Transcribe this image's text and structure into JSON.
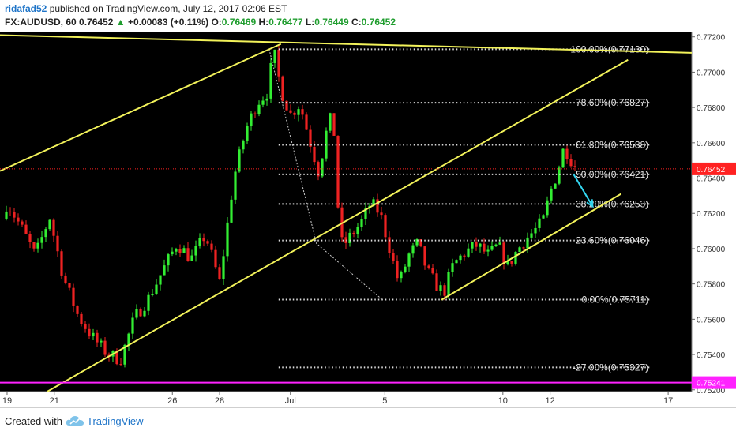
{
  "header": {
    "author": "ridafad52",
    "published_text": "published on TradingView.com, July 12, 2017 02:06 EST",
    "symbol": "FX:AUDUSD, 60",
    "last": "0.76452",
    "change_arrow": "▲",
    "change": "+0.00083 (+0.11%)",
    "o_label": "O:",
    "o_value": "0.76469",
    "h_label": "H:",
    "h_value": "0.76477",
    "l_label": "L:",
    "l_value": "0.76449",
    "c_label": "C:",
    "c_value": "0.76452"
  },
  "footer": {
    "created_with": "Created with",
    "brand": "TradingView",
    "logo_icon": "tradingview-cloud-icon"
  },
  "colors": {
    "background": "#000000",
    "bull": "#33ee33",
    "bear": "#ee2222",
    "trendline": "#f2f25a",
    "fib": "#dddddd",
    "current_price": "#ff2222",
    "support": "#ff22ff",
    "arrow": "#33d6f0"
  },
  "chart_data": {
    "type": "candlestick",
    "symbol": "FX:AUDUSD",
    "interval": "60",
    "ylim": [
      0.7519,
      0.7723
    ],
    "y_ticks": [
      "0.77200",
      "0.77000",
      "0.76800",
      "0.76600",
      "0.76400",
      "0.76200",
      "0.76000",
      "0.75800",
      "0.75600",
      "0.75400",
      "0.75200"
    ],
    "x_ticks": [
      {
        "label": "19",
        "day": 19
      },
      {
        "label": "21",
        "day": 21
      },
      {
        "label": "26",
        "day": 26
      },
      {
        "label": "28",
        "day": 28
      },
      {
        "label": "Jul",
        "day": 31
      },
      {
        "label": "5",
        "day": 35
      },
      {
        "label": "10",
        "day": 40
      },
      {
        "label": "12",
        "day": 42
      },
      {
        "label": "17",
        "day": 47
      }
    ],
    "x_range_days": [
      18.7,
      48.0
    ],
    "current_price": {
      "label": "0.76452",
      "value": 0.76452
    },
    "support_level": {
      "label": "0.75241",
      "value": 0.75241
    },
    "fib_levels": [
      {
        "label": "100.00%(0.77130)",
        "value": 0.7713
      },
      {
        "label": "78.60%(0.76827)",
        "value": 0.76827
      },
      {
        "label": "61.80%(0.76588)",
        "value": 0.76588
      },
      {
        "label": "50.00%(0.76421)",
        "value": 0.76421
      },
      {
        "label": "38.20%(0.76253)",
        "value": 0.76253
      },
      {
        "label": "23.60%(0.76046)",
        "value": 0.76046
      },
      {
        "label": "0.00%(0.75711)",
        "value": 0.75711
      },
      {
        "label": "-27.00%(0.75327)",
        "value": 0.75327
      }
    ],
    "fib_start_day": 30.5,
    "fib_end_day": 46.3,
    "trendlines": [
      {
        "from": {
          "day": 18.7,
          "price": 0.7721
        },
        "to": {
          "day": 48.0,
          "price": 0.7711
        }
      },
      {
        "from": {
          "day": 18.7,
          "price": 0.7644
        },
        "to": {
          "day": 30.6,
          "price": 0.7716
        }
      },
      {
        "from": {
          "day": 20.7,
          "price": 0.7519
        },
        "to": {
          "day": 45.3,
          "price": 0.7707
        }
      },
      {
        "from": {
          "day": 37.4,
          "price": 0.7571
        },
        "to": {
          "day": 45.0,
          "price": 0.7631
        }
      }
    ],
    "zigzag": [
      {
        "day": 30.1,
        "price": 0.7713
      },
      {
        "day": 32.1,
        "price": 0.7603
      },
      {
        "day": 34.9,
        "price": 0.7571
      }
    ],
    "arrow": {
      "from": {
        "day": 43.0,
        "price": 0.7642
      },
      "to": {
        "day": 43.8,
        "price": 0.7624
      }
    },
    "price_path": [
      {
        "day": 18.7,
        "price": 0.7617
      },
      {
        "day": 19.0,
        "price": 0.7626
      },
      {
        "day": 19.6,
        "price": 0.7612
      },
      {
        "day": 20.2,
        "price": 0.7596
      },
      {
        "day": 20.8,
        "price": 0.7618
      },
      {
        "day": 21.4,
        "price": 0.7583
      },
      {
        "day": 22.0,
        "price": 0.7562
      },
      {
        "day": 22.6,
        "price": 0.755
      },
      {
        "day": 23.2,
        "price": 0.7541
      },
      {
        "day": 23.8,
        "price": 0.7537
      },
      {
        "day": 24.4,
        "price": 0.7561
      },
      {
        "day": 25.0,
        "price": 0.7572
      },
      {
        "day": 25.6,
        "price": 0.7588
      },
      {
        "day": 26.2,
        "price": 0.7603
      },
      {
        "day": 26.8,
        "price": 0.7594
      },
      {
        "day": 27.4,
        "price": 0.7608
      },
      {
        "day": 28.0,
        "price": 0.7581
      },
      {
        "day": 28.6,
        "price": 0.764
      },
      {
        "day": 29.1,
        "price": 0.7667
      },
      {
        "day": 29.6,
        "price": 0.7683
      },
      {
        "day": 30.0,
        "price": 0.7688
      },
      {
        "day": 30.3,
        "price": 0.7712
      },
      {
        "day": 30.6,
        "price": 0.769
      },
      {
        "day": 31.0,
        "price": 0.7676
      },
      {
        "day": 31.4,
        "price": 0.7682
      },
      {
        "day": 31.8,
        "price": 0.7662
      },
      {
        "day": 32.2,
        "price": 0.7643
      },
      {
        "day": 32.5,
        "price": 0.7665
      },
      {
        "day": 32.8,
        "price": 0.7678
      },
      {
        "day": 33.0,
        "price": 0.7626
      },
      {
        "day": 33.2,
        "price": 0.7601
      },
      {
        "day": 33.6,
        "price": 0.7608
      },
      {
        "day": 34.0,
        "price": 0.7615
      },
      {
        "day": 34.4,
        "price": 0.7626
      },
      {
        "day": 34.8,
        "price": 0.762
      },
      {
        "day": 35.2,
        "price": 0.76
      },
      {
        "day": 35.6,
        "price": 0.758
      },
      {
        "day": 36.0,
        "price": 0.7596
      },
      {
        "day": 36.4,
        "price": 0.7603
      },
      {
        "day": 36.8,
        "price": 0.7587
      },
      {
        "day": 37.2,
        "price": 0.7579
      },
      {
        "day": 37.5,
        "price": 0.7575
      },
      {
        "day": 37.9,
        "price": 0.7591
      },
      {
        "day": 38.4,
        "price": 0.7598
      },
      {
        "day": 38.9,
        "price": 0.7602
      },
      {
        "day": 39.4,
        "price": 0.7596
      },
      {
        "day": 39.8,
        "price": 0.7602
      },
      {
        "day": 40.2,
        "price": 0.759
      },
      {
        "day": 40.6,
        "price": 0.7599
      },
      {
        "day": 41.0,
        "price": 0.7606
      },
      {
        "day": 41.4,
        "price": 0.7611
      },
      {
        "day": 41.7,
        "price": 0.7616
      },
      {
        "day": 42.0,
        "price": 0.7632
      },
      {
        "day": 42.3,
        "price": 0.7643
      },
      {
        "day": 42.6,
        "price": 0.7658
      },
      {
        "day": 42.9,
        "price": 0.765
      },
      {
        "day": 43.2,
        "price": 0.7645
      }
    ]
  }
}
